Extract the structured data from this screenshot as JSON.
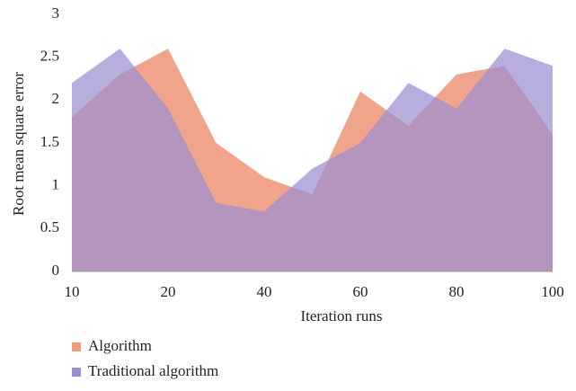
{
  "chart_data": {
    "type": "area",
    "x_label": "Iteration runs",
    "y_label": "Root mean square error",
    "categories": [
      "10",
      null,
      "20",
      null,
      "40",
      null,
      "60",
      null,
      "80",
      null,
      "100"
    ],
    "series": [
      {
        "name": "Algorithm",
        "color": "#f09a80",
        "values": [
          1.8,
          2.3,
          2.6,
          1.5,
          1.1,
          0.9,
          2.1,
          1.7,
          2.3,
          2.4,
          1.6
        ]
      },
      {
        "name": "Traditional algorithm",
        "color": "#9c8fd0",
        "values": [
          2.2,
          2.6,
          1.9,
          0.8,
          0.7,
          1.2,
          1.5,
          2.2,
          1.9,
          2.6,
          2.4
        ]
      }
    ],
    "ylim": [
      0,
      3
    ],
    "yticks": [
      0,
      0.5,
      1,
      1.5,
      2,
      2.5,
      3
    ],
    "grid": false
  }
}
